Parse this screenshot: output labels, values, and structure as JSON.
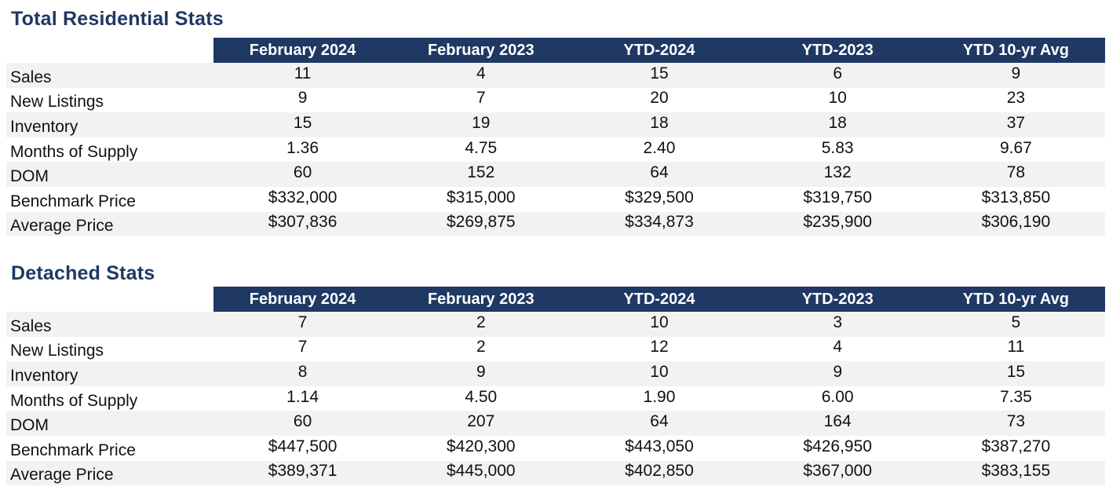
{
  "sections": [
    {
      "title": "Total Residential Stats",
      "columns": [
        "February 2024",
        "February 2023",
        "YTD-2024",
        "YTD-2023",
        "YTD 10-yr Avg"
      ],
      "rows": [
        {
          "label": "Sales",
          "values": [
            "11",
            "4",
            "15",
            "6",
            "9"
          ]
        },
        {
          "label": "New Listings",
          "values": [
            "9",
            "7",
            "20",
            "10",
            "23"
          ]
        },
        {
          "label": "Inventory",
          "values": [
            "15",
            "19",
            "18",
            "18",
            "37"
          ]
        },
        {
          "label": "Months of Supply",
          "values": [
            "1.36",
            "4.75",
            "2.40",
            "5.83",
            "9.67"
          ]
        },
        {
          "label": "DOM",
          "values": [
            "60",
            "152",
            "64",
            "132",
            "78"
          ]
        },
        {
          "label": "Benchmark Price",
          "values": [
            "$332,000",
            "$315,000",
            "$329,500",
            "$319,750",
            "$313,850"
          ]
        },
        {
          "label": "Average Price",
          "values": [
            "$307,836",
            "$269,875",
            "$334,873",
            "$235,900",
            "$306,190"
          ]
        }
      ]
    },
    {
      "title": "Detached Stats",
      "columns": [
        "February 2024",
        "February 2023",
        "YTD-2024",
        "YTD-2023",
        "YTD 10-yr Avg"
      ],
      "rows": [
        {
          "label": "Sales",
          "values": [
            "7",
            "2",
            "10",
            "3",
            "5"
          ]
        },
        {
          "label": "New Listings",
          "values": [
            "7",
            "2",
            "12",
            "4",
            "11"
          ]
        },
        {
          "label": "Inventory",
          "values": [
            "8",
            "9",
            "10",
            "9",
            "15"
          ]
        },
        {
          "label": "Months of Supply",
          "values": [
            "1.14",
            "4.50",
            "1.90",
            "6.00",
            "7.35"
          ]
        },
        {
          "label": "DOM",
          "values": [
            "60",
            "207",
            "64",
            "164",
            "73"
          ]
        },
        {
          "label": "Benchmark Price",
          "values": [
            "$447,500",
            "$420,300",
            "$443,050",
            "$426,950",
            "$387,270"
          ]
        },
        {
          "label": "Average Price",
          "values": [
            "$389,371",
            "$445,000",
            "$402,850",
            "$367,000",
            "$383,155"
          ]
        }
      ]
    }
  ],
  "colors": {
    "header_background": "#1f3864",
    "header_text": "#ffffff",
    "title_text": "#1f3864",
    "row_shade": "#f2f2f2"
  }
}
